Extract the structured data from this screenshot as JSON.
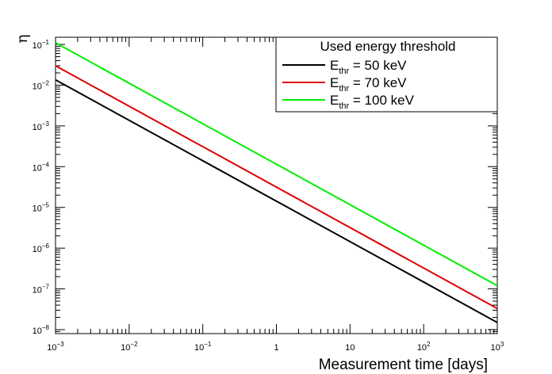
{
  "chart_data": {
    "type": "line",
    "title": "",
    "xlabel": "Measurement time [days]",
    "ylabel": "η",
    "x_scale": "log",
    "y_scale": "log",
    "xlim": [
      0.001,
      1000
    ],
    "ylim": [
      8e-09,
      0.15
    ],
    "grid": false,
    "legend_placement": "top-right",
    "legend_title": "Used energy threshold",
    "x_tick_labels": [
      {
        "value": 0.001,
        "base": "10",
        "exp": "−3"
      },
      {
        "value": 0.01,
        "base": "10",
        "exp": "−2"
      },
      {
        "value": 0.1,
        "base": "10",
        "exp": "−1"
      },
      {
        "value": 1,
        "base": "1",
        "exp": ""
      },
      {
        "value": 10,
        "base": "10",
        "exp": ""
      },
      {
        "value": 100,
        "base": "10",
        "exp": "2"
      },
      {
        "value": 1000,
        "base": "10",
        "exp": "3"
      }
    ],
    "y_tick_labels": [
      {
        "value": 1e-08,
        "base": "10",
        "exp": "−8"
      },
      {
        "value": 1e-07,
        "base": "10",
        "exp": "−7"
      },
      {
        "value": 1e-06,
        "base": "10",
        "exp": "−6"
      },
      {
        "value": 1e-05,
        "base": "10",
        "exp": "−5"
      },
      {
        "value": 0.0001,
        "base": "10",
        "exp": "−4"
      },
      {
        "value": 0.001,
        "base": "10",
        "exp": "−3"
      },
      {
        "value": 0.01,
        "base": "10",
        "exp": "−2"
      },
      {
        "value": 0.1,
        "base": "10",
        "exp": "−1"
      }
    ],
    "series": [
      {
        "name_main": "E",
        "name_sub": "thr",
        "name_rest": " = 50 keV",
        "color": "#000000",
        "x": [
          0.001,
          1000
        ],
        "y": [
          0.0135,
          1.5e-08
        ]
      },
      {
        "name_main": "E",
        "name_sub": "thr",
        "name_rest": " = 70 keV",
        "color": "#dd0000",
        "x": [
          0.001,
          1000
        ],
        "y": [
          0.03,
          3.3e-08
        ]
      },
      {
        "name_main": "E",
        "name_sub": "thr",
        "name_rest": " = 100 keV",
        "color": "#00ee00",
        "x": [
          0.001,
          1000
        ],
        "y": [
          0.11,
          1.2e-07
        ]
      }
    ]
  }
}
